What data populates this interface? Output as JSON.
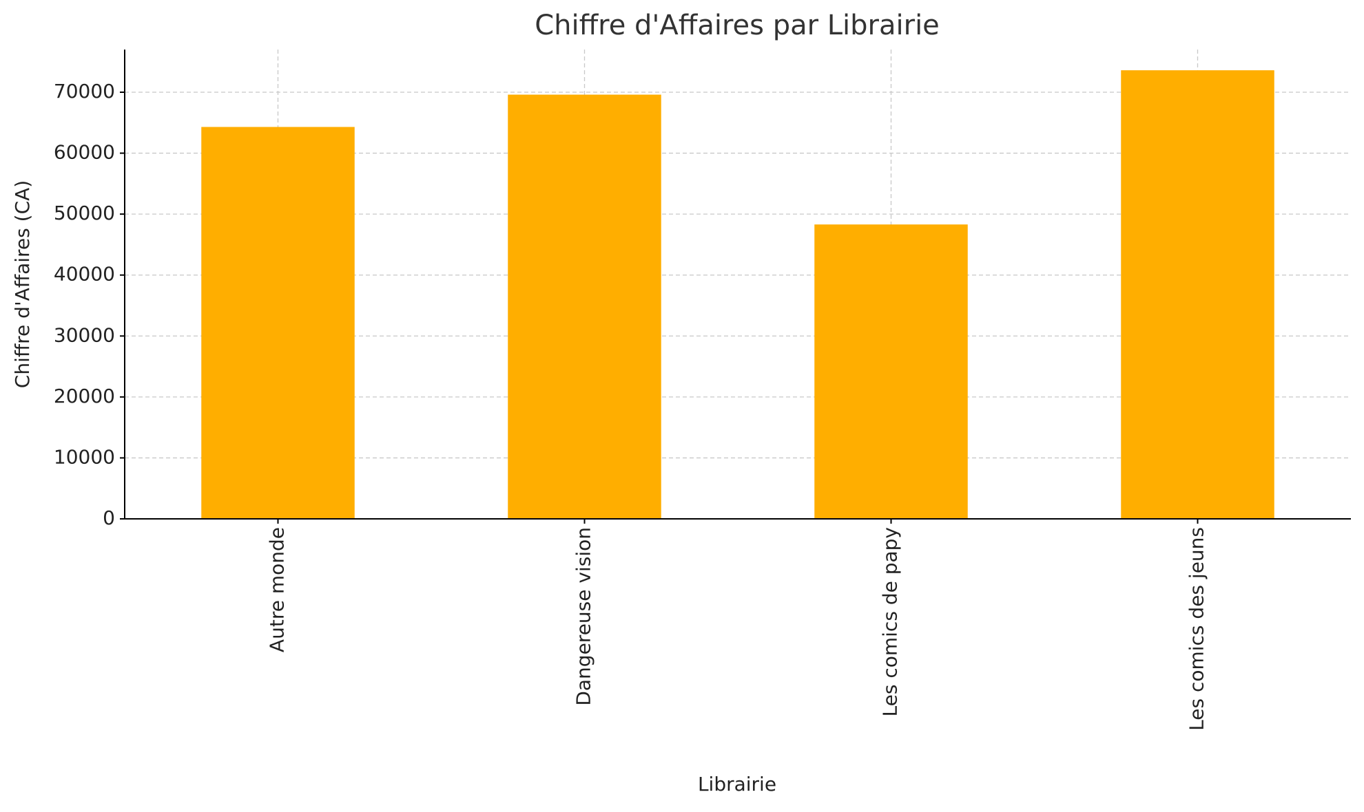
{
  "chart_data": {
    "type": "bar",
    "title": "Chiffre d'Affaires par Librairie",
    "x_label": "Librairie",
    "y_label": "Chiffre d'Affaires (CA)",
    "categories": [
      "Autre monde",
      "Dangereuse vision",
      "Les comics de papy",
      "Les comics des jeuns"
    ],
    "values": [
      64300,
      69600,
      48300,
      73600
    ],
    "color": "#ffae00",
    "ylim": [
      0,
      77000
    ],
    "yticks": [
      0,
      10000,
      20000,
      30000,
      40000,
      50000,
      60000,
      70000
    ],
    "grid": true
  }
}
